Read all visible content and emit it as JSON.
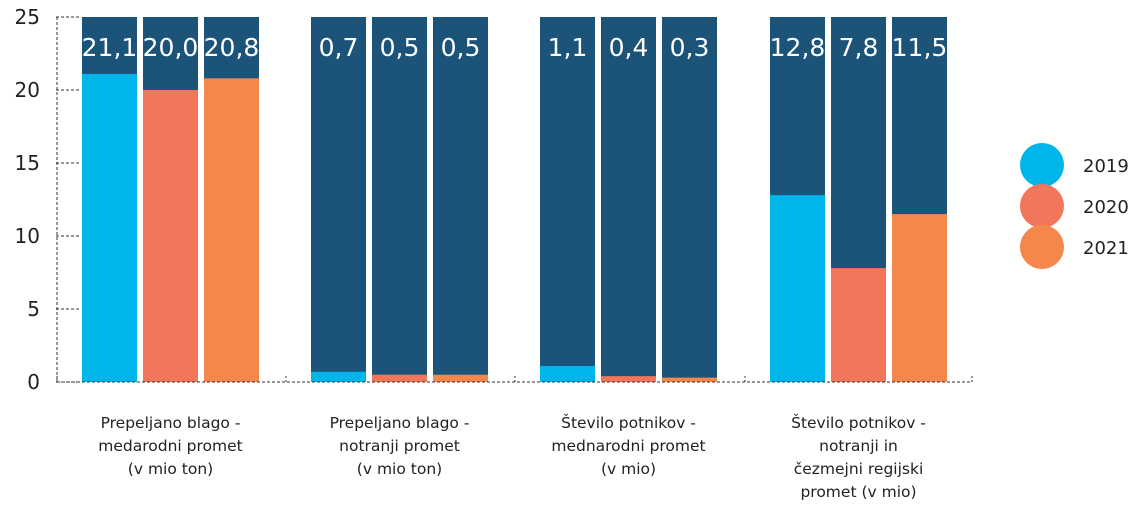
{
  "chart_data": {
    "type": "bar",
    "title": "",
    "xlabel": "",
    "ylabel": "",
    "ylim": [
      0,
      25
    ],
    "yticks": [
      0,
      5,
      10,
      15,
      20,
      25
    ],
    "grid": false,
    "legend_position": "right",
    "stacked_background": true,
    "background_color": "#1b5379",
    "categories": [
      [
        "Prepeljano blago -",
        "medarodni promet",
        "(v mio ton)"
      ],
      [
        "Prepeljano blago -",
        "notranji promet",
        "(v mio ton)"
      ],
      [
        "Število potnikov -",
        "mednarodni promet",
        "(v mio)"
      ],
      [
        "Število potnikov -",
        "notranji in",
        "čezmejni regijski",
        "promet (v mio)"
      ]
    ],
    "series": [
      {
        "name": "2019",
        "color": "#00b5ea",
        "values": [
          21.1,
          0.7,
          1.1,
          12.8
        ],
        "labels": [
          "21,1",
          "0,7",
          "1,1",
          "12,8"
        ]
      },
      {
        "name": "2020",
        "color": "#f2765a",
        "values": [
          20.0,
          0.5,
          0.4,
          7.8
        ],
        "labels": [
          "20,0",
          "0,5",
          "0,4",
          "7,8"
        ]
      },
      {
        "name": "2021",
        "color": "#f4874b",
        "values": [
          20.8,
          0.5,
          0.3,
          11.5
        ],
        "labels": [
          "20,8",
          "0,5",
          "0,3",
          "11,5"
        ]
      }
    ]
  }
}
